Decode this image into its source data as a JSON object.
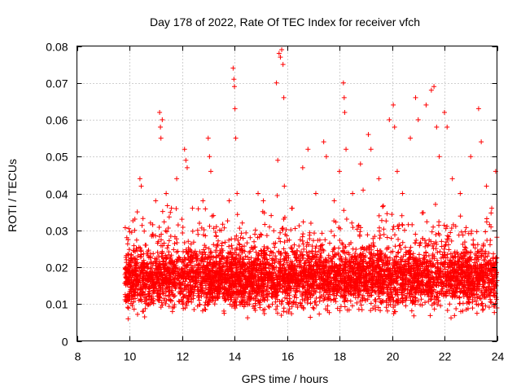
{
  "chart_data": {
    "type": "scatter",
    "title": "Day 178 of 2022, Rate Of TEC Index for receiver vfch",
    "xlabel": "GPS time / hours",
    "ylabel": "ROTI / TECUs",
    "xlim": [
      8,
      24
    ],
    "ylim": [
      0,
      0.08
    ],
    "x_ticks": [
      8,
      10,
      12,
      14,
      16,
      18,
      20,
      22,
      24
    ],
    "x_tick_labels": [
      "8",
      "10",
      "12",
      "14",
      "16",
      "18",
      "20",
      "22",
      "24"
    ],
    "y_ticks": [
      0,
      0.01,
      0.02,
      0.03,
      0.04,
      0.05,
      0.06,
      0.07,
      0.08
    ],
    "y_tick_labels": [
      "0",
      "0.01",
      "0.02",
      "0.03",
      "0.04",
      "0.05",
      "0.06",
      "0.07",
      "0.08"
    ],
    "grid": true,
    "marker": "+",
    "marker_color": "#ff0000",
    "series": [
      {
        "name": "ROTI",
        "description_of_distribution": "dense band 9.8-24 h, median ~0.015",
        "points": [
          [
            9.85,
            0.012
          ],
          [
            9.9,
            0.028
          ],
          [
            9.95,
            0.006
          ],
          [
            10.0,
            0.018
          ],
          [
            10.1,
            0.022
          ],
          [
            10.2,
            0.03
          ],
          [
            10.3,
            0.035
          ],
          [
            10.4,
            0.044
          ],
          [
            10.45,
            0.042
          ],
          [
            10.5,
            0.008
          ],
          [
            10.6,
            0.026
          ],
          [
            10.8,
            0.032
          ],
          [
            11.0,
            0.038
          ],
          [
            11.15,
            0.062
          ],
          [
            11.18,
            0.058
          ],
          [
            11.2,
            0.055
          ],
          [
            11.25,
            0.06
          ],
          [
            11.4,
            0.04
          ],
          [
            11.6,
            0.036
          ],
          [
            11.8,
            0.044
          ],
          [
            12.0,
            0.033
          ],
          [
            12.1,
            0.052
          ],
          [
            12.15,
            0.049
          ],
          [
            12.2,
            0.047
          ],
          [
            12.4,
            0.036
          ],
          [
            12.6,
            0.03
          ],
          [
            12.8,
            0.038
          ],
          [
            13.0,
            0.055
          ],
          [
            13.05,
            0.05
          ],
          [
            13.1,
            0.046
          ],
          [
            13.2,
            0.034
          ],
          [
            13.5,
            0.03
          ],
          [
            13.8,
            0.038
          ],
          [
            13.95,
            0.074
          ],
          [
            13.98,
            0.071
          ],
          [
            14.0,
            0.069
          ],
          [
            14.02,
            0.063
          ],
          [
            14.05,
            0.055
          ],
          [
            14.1,
            0.04
          ],
          [
            14.3,
            0.032
          ],
          [
            14.6,
            0.028
          ],
          [
            14.9,
            0.04
          ],
          [
            15.1,
            0.038
          ],
          [
            15.4,
            0.034
          ],
          [
            15.7,
            0.078
          ],
          [
            15.75,
            0.077
          ],
          [
            15.8,
            0.079
          ],
          [
            15.85,
            0.075
          ],
          [
            15.88,
            0.066
          ],
          [
            15.6,
            0.07
          ],
          [
            15.65,
            0.049
          ],
          [
            15.9,
            0.042
          ],
          [
            16.2,
            0.036
          ],
          [
            16.6,
            0.047
          ],
          [
            16.8,
            0.052
          ],
          [
            17.1,
            0.04
          ],
          [
            17.4,
            0.054
          ],
          [
            17.5,
            0.05
          ],
          [
            17.8,
            0.038
          ],
          [
            18.0,
            0.046
          ],
          [
            18.15,
            0.07
          ],
          [
            18.18,
            0.066
          ],
          [
            18.2,
            0.062
          ],
          [
            18.25,
            0.052
          ],
          [
            18.5,
            0.04
          ],
          [
            18.8,
            0.048
          ],
          [
            19.1,
            0.056
          ],
          [
            19.2,
            0.052
          ],
          [
            19.5,
            0.044
          ],
          [
            19.9,
            0.06
          ],
          [
            20.05,
            0.064
          ],
          [
            20.1,
            0.058
          ],
          [
            20.2,
            0.046
          ],
          [
            20.4,
            0.04
          ],
          [
            20.7,
            0.055
          ],
          [
            20.9,
            0.066
          ],
          [
            21.0,
            0.06
          ],
          [
            21.3,
            0.064
          ],
          [
            21.5,
            0.068
          ],
          [
            21.6,
            0.069
          ],
          [
            21.7,
            0.058
          ],
          [
            21.8,
            0.05
          ],
          [
            22.0,
            0.062
          ],
          [
            22.1,
            0.058
          ],
          [
            22.3,
            0.044
          ],
          [
            22.6,
            0.04
          ],
          [
            23.0,
            0.05
          ],
          [
            23.3,
            0.063
          ],
          [
            23.4,
            0.054
          ],
          [
            23.6,
            0.042
          ],
          [
            23.8,
            0.036
          ],
          [
            23.95,
            0.046
          ]
        ]
      }
    ]
  }
}
